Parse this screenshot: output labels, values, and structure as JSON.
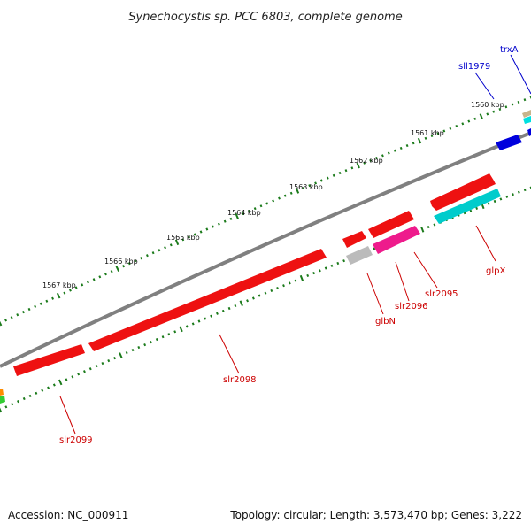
{
  "title": "Synechocystis sp. PCC 6803, complete genome",
  "footer": {
    "accession": "Accession: NC_000911",
    "stats": "Topology: circular; Length: 3,573,470 bp; Genes: 3,222"
  },
  "scale_labels": [
    "1560 kbp",
    "1561 kbp",
    "1562 kbp",
    "1563 kbp",
    "1564 kbp",
    "1565 kbp",
    "1566 kbp",
    "1567 kbp"
  ],
  "genes": [
    {
      "label": "trxA",
      "color": "#0000ff"
    },
    {
      "label": "sll1979",
      "color": "#0000ff"
    },
    {
      "label": "glpX",
      "color": "#ff0000"
    },
    {
      "label": "slr2095",
      "color": "#ff0000"
    },
    {
      "label": "slr2096",
      "color": "#ff0000"
    },
    {
      "label": "glbN",
      "color": "#ff0000"
    },
    {
      "label": "slr2098",
      "color": "#ff0000"
    },
    {
      "label": "slr2099",
      "color": "#ff0000"
    }
  ],
  "colors": {
    "backbone": "#808080",
    "ticks": "#1a7a1a",
    "forward_gene": "#ff0000",
    "reverse_gene": "#0000ff",
    "rna_gene": "#ff1493",
    "cds_cyan": "#00cccc",
    "pseudo_gene": "#bbbbbb"
  }
}
